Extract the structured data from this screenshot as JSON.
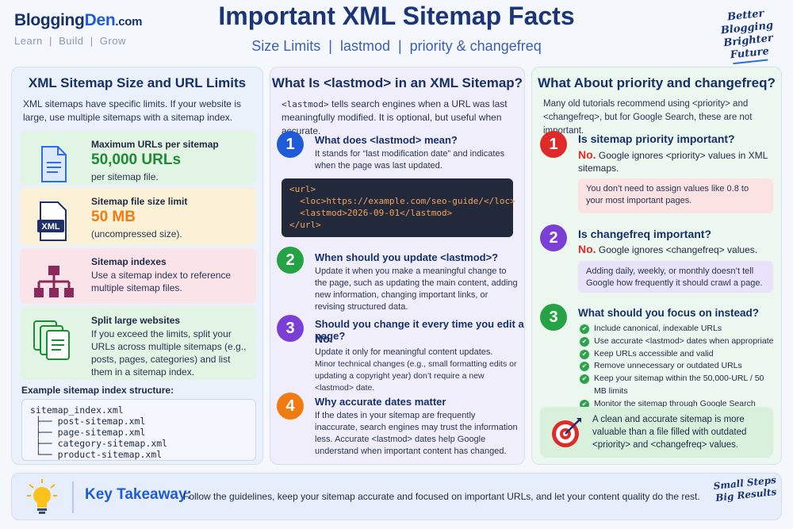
{
  "header": {
    "brand_part1": "Blogging",
    "brand_part2": "Den",
    "brand_suffix": ".com",
    "tagline": "Learn  |  Build  |  Grow",
    "title": "Important XML Sitemap Facts",
    "subtitle": "Size Limits  |  lastmod  |  priority & changefreq",
    "motto": [
      "Better",
      "Blogging",
      "Brighter",
      "Future"
    ]
  },
  "col1": {
    "heading": "XML Sitemap Size and URL Limits",
    "intro": "XML sitemaps have specific limits. If your website is large, use multiple sitemaps with a sitemap index.",
    "cards": [
      {
        "label": "Maximum URLs per sitemap",
        "big": "50,000 URLs",
        "sub": "per sitemap file.",
        "icon": "document-icon",
        "color": "#1d8a35"
      },
      {
        "label": "Sitemap file size limit",
        "big": "50 MB",
        "sub": "(uncompressed size).",
        "icon": "xml-file-icon",
        "icon_text": "XML",
        "color": "#f07b11"
      },
      {
        "label": "Sitemap indexes",
        "sub": "Use a sitemap index to reference multiple sitemap files.",
        "icon": "hierarchy-icon"
      },
      {
        "label": "Split large websites",
        "sub": "If you exceed the limits, split your URLs across multiple sitemaps (e.g., posts, pages, categories) and list them in a sitemap index.",
        "icon": "files-stack-icon"
      }
    ],
    "example_title": "Example sitemap index structure:",
    "example_lines": [
      "sitemap_index.xml",
      " ├── post-sitemap.xml",
      " ├── page-sitemap.xml",
      " ├── category-sitemap.xml",
      " └── product-sitemap.xml"
    ]
  },
  "col2": {
    "heading": "What Is <lastmod> in an XML Sitemap?",
    "intro_code": "<lastmod>",
    "intro": " tells search engines when a URL was last meaningfully modified. It is optional, but useful when accurate.",
    "items": [
      {
        "n": "1",
        "title": "What does <lastmod> mean?",
        "text": "It stands for “last modification date” and indicates when the page was last updated.",
        "color": "#1f5bd6"
      },
      {
        "n": "2",
        "title": "When should you update <lastmod>?",
        "text": "Update it when you make a meaningful change to the page, such as updating the main content, adding new information, changing important links, or revising structured data.",
        "color": "#25a244"
      },
      {
        "n": "3",
        "title": "Should you change it every time you edit a page?",
        "answer": "No.",
        "text": "Update it only for meaningful content updates.",
        "text2": "Minor technical changes (e.g., small formatting edits or updating a copyright year) don’t require a new <lastmod> date.",
        "color": "#7b3fd6"
      },
      {
        "n": "4",
        "title": "Why accurate dates matter",
        "text": "If the dates in your sitemap are frequently inaccurate, search engines may trust the information less. Accurate <lastmod> dates help Google understand when important content has changed.",
        "color": "#f07b11"
      }
    ],
    "code_lines": [
      "<url>",
      "  <loc>https://example.com/seo-guide/</loc>",
      "  <lastmod>2026-09-01</lastmod>",
      "</url>"
    ]
  },
  "col3": {
    "heading": "What About priority and changefreq?",
    "intro": "Many old tutorials recommend using <priority> and <changefreq>, but for Google Search, these are not important.",
    "items": [
      {
        "n": "1",
        "title": "Is sitemap priority important?",
        "no": "No.",
        "answer": " Google ignores <priority> values in XML sitemaps.",
        "note": "You don’t need to assign values like 0.8 to your most important pages.",
        "color": "#e02a2a"
      },
      {
        "n": "2",
        "title": "Is changefreq important?",
        "no": "No.",
        "answer": " Google ignores <changefreq> values.",
        "note": "Adding daily, weekly, or monthly doesn’t tell Google how frequently it should crawl a page.",
        "color": "#7b3fd6"
      },
      {
        "n": "3",
        "title": "What should you focus on instead?",
        "color": "#25a244"
      }
    ],
    "checklist": [
      "Include canonical, indexable URLs",
      "Use accurate <lastmod> dates when appropriate",
      "Keep URLs accessible and valid",
      "Remove unnecessary or outdated URLs",
      "Keep your sitemap within the 50,000-URL / 50 MB limits",
      "Monitor the sitemap through Google Search Console"
    ],
    "final_text": "A clean and accurate sitemap is more valuable than a file filled with outdated <priority> and <changefreq> values.",
    "final_icon": "target-icon"
  },
  "footer": {
    "title": "Key Takeaway:",
    "text": "Follow the guidelines, keep your sitemap accurate and focused on important URLs, and let your content quality do the rest.",
    "icon": "lightbulb-icon",
    "motto": [
      "Small Steps",
      "Big Results"
    ]
  }
}
